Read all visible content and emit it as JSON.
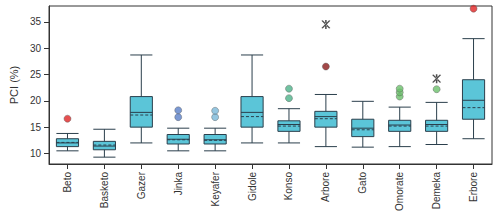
{
  "chart_data": {
    "type": "boxplot",
    "y_label": "PCI (%)",
    "color": "#5bc5d8",
    "ylim": [
      8,
      38
    ],
    "yticks": [
      10,
      15,
      20,
      25,
      30,
      35
    ],
    "grid": false,
    "categories": [
      "Beto",
      "Basketo",
      "Gazer",
      "Jinka",
      "Keyafer",
      "Gidole",
      "Konso",
      "Arbore",
      "Gato",
      "Omorate",
      "Demeka",
      "Erbore"
    ],
    "stats": [
      {
        "min": 10.5,
        "q1": 11.3,
        "median": 12.0,
        "q3": 12.8,
        "max": 13.8,
        "mean": 12.1,
        "outliers": [
          {
            "value": 16.6,
            "color": "#e02424",
            "marker": "circle"
          }
        ]
      },
      {
        "min": 9.3,
        "q1": 10.7,
        "median": 11.4,
        "q3": 12.3,
        "max": 14.6,
        "mean": 11.6,
        "outliers": []
      },
      {
        "min": 12.0,
        "q1": 15.0,
        "median": 17.8,
        "q3": 20.8,
        "max": 28.7,
        "mean": 17.3,
        "outliers": []
      },
      {
        "min": 10.5,
        "q1": 11.8,
        "median": 12.7,
        "q3": 13.6,
        "max": 14.8,
        "mean": 12.6,
        "outliers": [
          {
            "value": 16.9,
            "color": "#5a7fc8",
            "marker": "circle"
          },
          {
            "value": 18.2,
            "color": "#5a7fc8",
            "marker": "circle"
          }
        ]
      },
      {
        "min": 10.5,
        "q1": 11.8,
        "median": 12.6,
        "q3": 13.6,
        "max": 14.8,
        "mean": 12.5,
        "outliers": [
          {
            "value": 16.9,
            "color": "#7ab8d8",
            "marker": "circle"
          },
          {
            "value": 18.1,
            "color": "#7ab8d8",
            "marker": "circle"
          }
        ]
      },
      {
        "min": 12.0,
        "q1": 15.0,
        "median": 17.8,
        "q3": 20.8,
        "max": 28.7,
        "mean": 17.0,
        "outliers": []
      },
      {
        "min": 12.0,
        "q1": 14.2,
        "median": 15.5,
        "q3": 16.2,
        "max": 18.5,
        "mean": 15.2,
        "outliers": [
          {
            "value": 20.5,
            "color": "#4db38a",
            "marker": "circle"
          },
          {
            "value": 22.3,
            "color": "#4db38a",
            "marker": "circle"
          }
        ]
      },
      {
        "min": 11.3,
        "q1": 15.0,
        "median": 17.0,
        "q3": 18.0,
        "max": 21.2,
        "mean": 16.6,
        "outliers": [
          {
            "value": 26.5,
            "color": "#8b1a1a",
            "marker": "circle"
          },
          {
            "value": 34.5,
            "color": "#222222",
            "marker": "asterisk"
          }
        ]
      },
      {
        "min": 11.2,
        "q1": 13.2,
        "median": 14.8,
        "q3": 16.5,
        "max": 19.9,
        "mean": 14.5,
        "outliers": []
      },
      {
        "min": 11.3,
        "q1": 14.2,
        "median": 15.4,
        "q3": 16.3,
        "max": 18.8,
        "mean": 15.2,
        "outliers": [
          {
            "value": 20.8,
            "color": "#6bc06b",
            "marker": "circle"
          },
          {
            "value": 21.6,
            "color": "#6bc06b",
            "marker": "circle"
          },
          {
            "value": 22.3,
            "color": "#6bc06b",
            "marker": "circle"
          }
        ]
      },
      {
        "min": 11.7,
        "q1": 14.2,
        "median": 15.5,
        "q3": 16.3,
        "max": 19.7,
        "mean": 15.2,
        "outliers": [
          {
            "value": 22.2,
            "color": "#6bc06b",
            "marker": "circle"
          },
          {
            "value": 24.2,
            "color": "#222222",
            "marker": "asterisk"
          }
        ]
      },
      {
        "min": 12.8,
        "q1": 16.5,
        "median": 20.1,
        "q3": 24.0,
        "max": 31.8,
        "mean": 18.7,
        "outliers": [
          {
            "value": 37.5,
            "color": "#e02424",
            "marker": "circle"
          }
        ]
      }
    ]
  }
}
